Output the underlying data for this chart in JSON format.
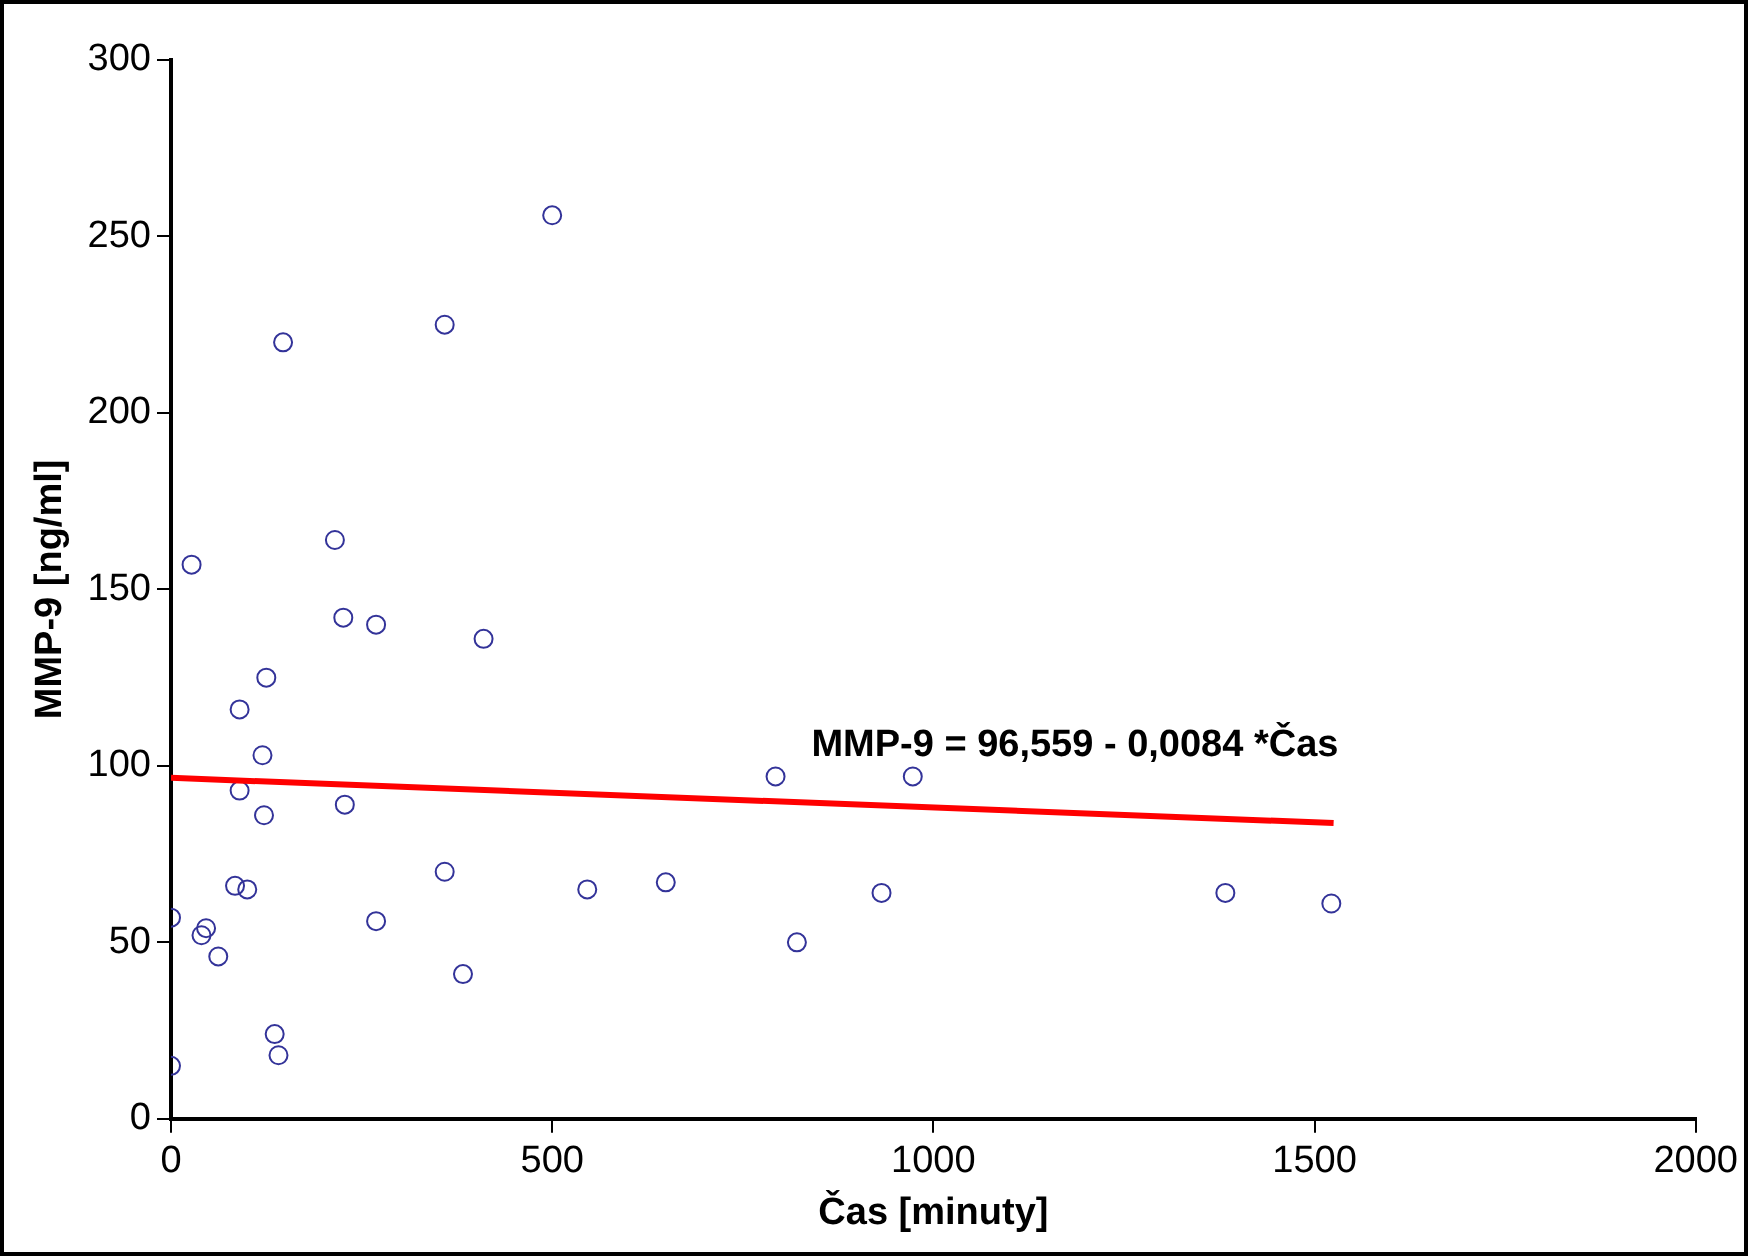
{
  "chart_data": {
    "type": "scatter",
    "xlabel": "Čas [minuty]",
    "ylabel": "MMP-9 [ng/ml]",
    "xlim": [
      0,
      2000
    ],
    "xticks": [
      0,
      500,
      1000,
      1500,
      2000
    ],
    "ylim": [
      0,
      300
    ],
    "yticks": [
      0,
      50,
      100,
      150,
      200,
      250,
      300
    ],
    "grid": false,
    "legend": false,
    "series": [
      {
        "marker": "circle",
        "color": "#333399",
        "x": [
          0,
          0,
          27,
          40,
          46,
          62,
          84,
          90,
          90,
          100,
          120,
          122,
          125,
          136,
          141,
          147,
          215,
          226,
          228,
          269,
          269,
          359,
          359,
          383,
          410,
          500,
          546,
          649,
          793,
          821,
          932,
          973,
          1383,
          1522
        ],
        "values": [
          57,
          15,
          157,
          52,
          54,
          46,
          66,
          116,
          93,
          65,
          103,
          86,
          125,
          24,
          18,
          220,
          164,
          142,
          89,
          140,
          56,
          225,
          70,
          41,
          136,
          256,
          65,
          67,
          97,
          50,
          64,
          97,
          64,
          61
        ]
      },
      {
        "type": "line",
        "marker": "none",
        "color": "#ff0000",
        "x": [
          0,
          1525
        ],
        "values": [
          96.6,
          83.8
        ]
      }
    ],
    "annotations": [
      "MMP-9 = 96,559 - 0,0084 *Čas"
    ]
  }
}
